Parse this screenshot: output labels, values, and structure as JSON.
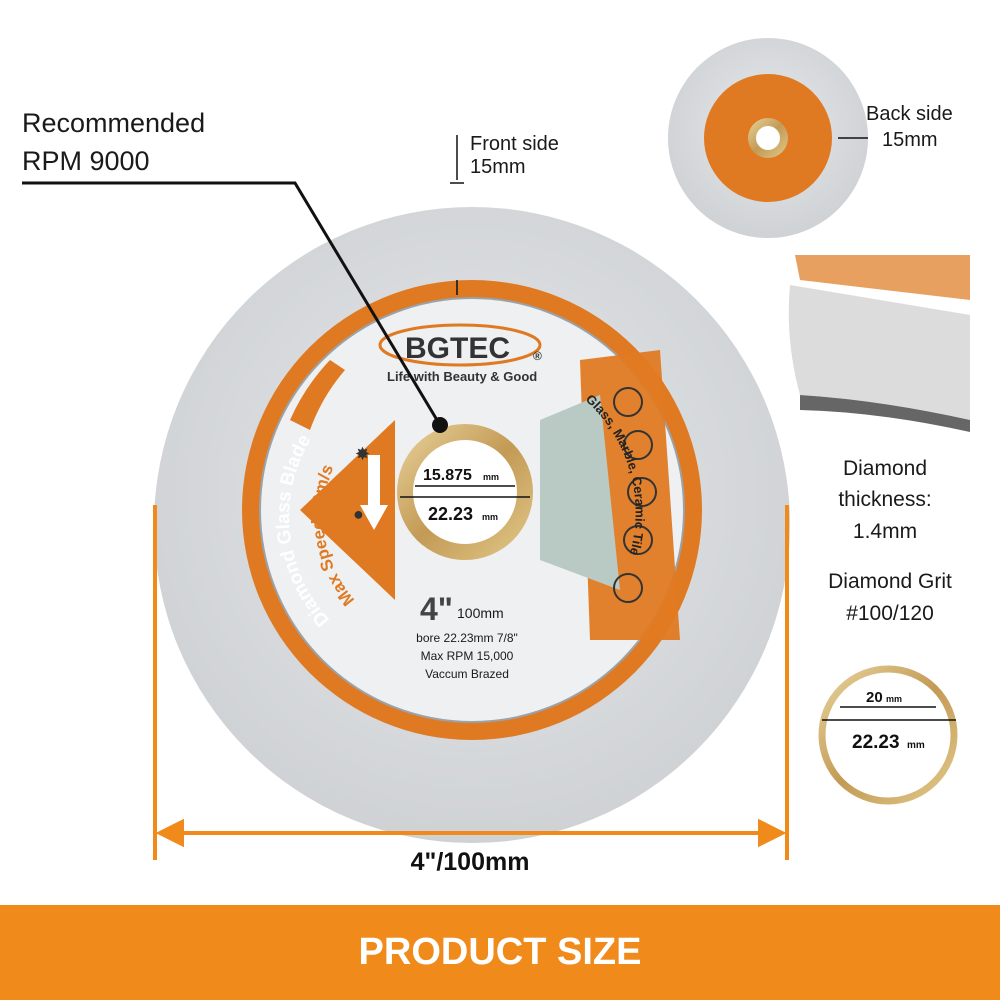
{
  "callouts": {
    "recommended_line1": "Recommended",
    "recommended_line2": "RPM 9000",
    "front_side_line1": "Front side",
    "front_side_line2": "15mm",
    "back_side_line1": "Back side",
    "back_side_line2": "15mm",
    "thickness_line1": "Diamond",
    "thickness_line2": "thickness:",
    "thickness_line3": "1.4mm",
    "grit_line1": "Diamond Grit",
    "grit_line2": "#100/120",
    "ring_inner": "20",
    "ring_outer": "22.23",
    "ring_unit": "mm",
    "diameter": "4\"/100mm"
  },
  "blade_label": {
    "brand": "BGTEC",
    "registered": "®",
    "slogan": "Life with Beauty & Good",
    "product": "Diamond Glass Blade",
    "max_speed": "Max Speed 80m/s",
    "materials": "Glass, Marble, Ceramic Tile",
    "size": "4\"",
    "size_mm": "100mm",
    "bore": "bore 22.23mm 7/8\"",
    "max_rpm": "Max RPM 15,000",
    "process": "Vaccum Brazed",
    "bore_inner": "15.875",
    "bore_outer": "22.23",
    "bore_unit": "mm"
  },
  "banner": {
    "title": "PRODUCT SIZE"
  },
  "colors": {
    "accent": "#ef8a1b",
    "blade_orange": "#e07a22",
    "disc_gray": "#d9dcdf",
    "brass": "#c9a96a"
  },
  "icons": [
    "safety-goggles-icon",
    "ear-protection-icon",
    "mask-icon",
    "gloves-icon",
    "manual-icon",
    "sun-icon",
    "water-drop-icon",
    "down-arrow-icon"
  ]
}
